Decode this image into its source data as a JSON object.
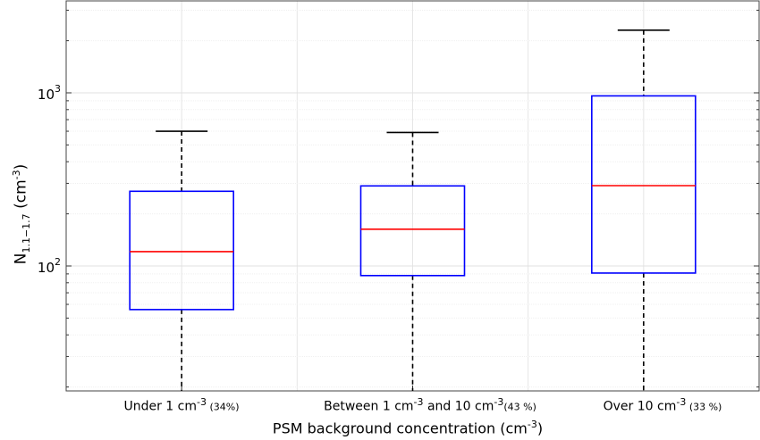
{
  "chart_data": {
    "type": "box",
    "yscale": "log",
    "ylim": [
      18,
      3500
    ],
    "grid": true,
    "ylabel": {
      "base": "N",
      "subscript": "1.1−1.7",
      "unit_prefix": " (cm",
      "unit_exp": "-3",
      "unit_suffix": ")"
    },
    "xlabel": {
      "prefix": "PSM background concentration (cm",
      "exp": "-3",
      "suffix": ")"
    },
    "yticks": [
      {
        "value": 100,
        "base": "10",
        "exp": "2"
      },
      {
        "value": 1000,
        "base": "10",
        "exp": "3"
      }
    ],
    "categories": [
      {
        "text": "Under 1 cm",
        "exp": "-3",
        "after": "",
        "pct": " (34%)"
      },
      {
        "text": "Between 1 cm",
        "exp": "-3",
        "after": " and 10 cm",
        "exp2": "-3",
        "pct": "(43 %)"
      },
      {
        "text": "Over 10 cm",
        "exp": "-3",
        "after": "",
        "pct": " (33 %)"
      }
    ],
    "boxes": [
      {
        "whisker_low": 18,
        "q1": 56,
        "median": 121,
        "q3": 270,
        "whisker_high": 600
      },
      {
        "whisker_low": 18,
        "q1": 88,
        "median": 163,
        "q3": 290,
        "whisker_high": 590
      },
      {
        "whisker_low": 18,
        "q1": 91,
        "median": 291,
        "q3": 960,
        "whisker_high": 2300
      }
    ],
    "colors": {
      "box": "#0000ff",
      "median": "#ff0000",
      "whisker": "#000000",
      "grid": "#e6e6e6"
    }
  }
}
